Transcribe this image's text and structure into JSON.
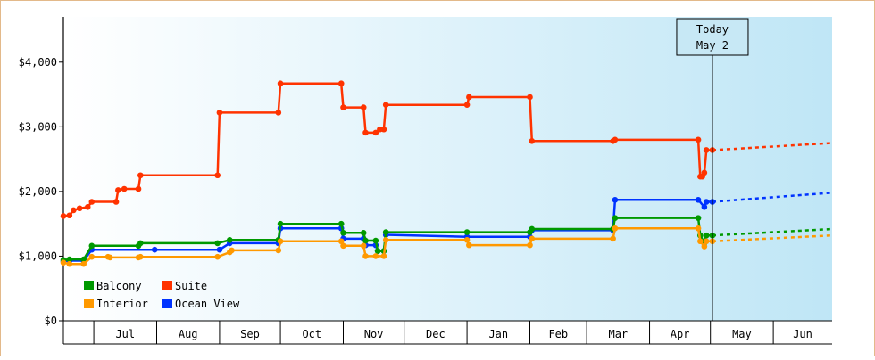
{
  "chart_data": {
    "type": "line",
    "title": "",
    "xlabel": "",
    "ylabel": "",
    "x_range": [
      "2014-06-16",
      "2015-06-30"
    ],
    "ylim": [
      0,
      4700
    ],
    "yticks": [
      0,
      1000,
      2000,
      3000,
      4000
    ],
    "ytick_labels": [
      "$0",
      "$1,000",
      "$2,000",
      "$3,000",
      "$4,000"
    ],
    "month_ticks": [
      {
        "label": "Jul",
        "start": "2014-07-01",
        "end": "2014-08-01"
      },
      {
        "label": "Aug",
        "start": "2014-08-01",
        "end": "2014-09-01"
      },
      {
        "label": "Sep",
        "start": "2014-09-01",
        "end": "2014-10-01"
      },
      {
        "label": "Oct",
        "start": "2014-10-01",
        "end": "2014-11-01"
      },
      {
        "label": "Nov",
        "start": "2014-11-01",
        "end": "2014-12-01"
      },
      {
        "label": "Dec",
        "start": "2014-12-01",
        "end": "2015-01-01"
      },
      {
        "label": "Jan",
        "start": "2015-01-01",
        "end": "2015-02-01"
      },
      {
        "label": "Feb",
        "start": "2015-02-01",
        "end": "2015-03-01"
      },
      {
        "label": "Mar",
        "start": "2015-03-01",
        "end": "2015-04-01"
      },
      {
        "label": "Apr",
        "start": "2015-04-01",
        "end": "2015-05-01"
      },
      {
        "label": "May",
        "start": "2015-05-01",
        "end": "2015-06-01"
      },
      {
        "label": "Jun",
        "start": "2015-06-01",
        "end": "2015-06-30"
      }
    ],
    "today_marker": {
      "date": "2015-05-02",
      "line1": "Today",
      "line2": "May 2"
    },
    "forecast_end": "2015-06-30",
    "grid": false,
    "legend_position": "bottom-left",
    "series": [
      {
        "name": "Suite",
        "color": "#ff3300",
        "points": [
          [
            "2014-06-16",
            1620
          ],
          [
            "2014-06-19",
            1630
          ],
          [
            "2014-06-21",
            1710
          ],
          [
            "2014-06-24",
            1740
          ],
          [
            "2014-06-28",
            1760
          ],
          [
            "2014-06-30",
            1840
          ],
          [
            "2014-07-12",
            1840
          ],
          [
            "2014-07-13",
            2020
          ],
          [
            "2014-07-16",
            2040
          ],
          [
            "2014-07-23",
            2040
          ],
          [
            "2014-07-24",
            2250
          ],
          [
            "2014-08-31",
            2250
          ],
          [
            "2014-09-01",
            3220
          ],
          [
            "2014-09-30",
            3220
          ],
          [
            "2014-10-01",
            3670
          ],
          [
            "2014-10-31",
            3670
          ],
          [
            "2014-11-01",
            3300
          ],
          [
            "2014-11-11",
            3300
          ],
          [
            "2014-11-12",
            2910
          ],
          [
            "2014-11-17",
            2910
          ],
          [
            "2014-11-19",
            2960
          ],
          [
            "2014-11-21",
            2960
          ],
          [
            "2014-11-22",
            3340
          ],
          [
            "2015-01-01",
            3340
          ],
          [
            "2015-01-02",
            3460
          ],
          [
            "2015-02-01",
            3460
          ],
          [
            "2015-02-02",
            2780
          ],
          [
            "2015-03-14",
            2780
          ],
          [
            "2015-03-15",
            2800
          ],
          [
            "2015-04-25",
            2800
          ],
          [
            "2015-04-26",
            2230
          ],
          [
            "2015-04-27",
            2230
          ],
          [
            "2015-04-28",
            2290
          ],
          [
            "2015-04-29",
            2640
          ],
          [
            "2015-05-02",
            2640
          ]
        ],
        "forecast": [
          [
            "2015-05-02",
            2640
          ],
          [
            "2015-06-30",
            2750
          ]
        ]
      },
      {
        "name": "Ocean View",
        "color": "#0033ff",
        "points": [
          [
            "2014-06-16",
            920
          ],
          [
            "2014-06-19",
            930
          ],
          [
            "2014-06-26",
            930
          ],
          [
            "2014-06-30",
            1100
          ],
          [
            "2014-07-31",
            1100
          ],
          [
            "2014-09-01",
            1100
          ],
          [
            "2014-09-06",
            1200
          ],
          [
            "2014-09-30",
            1200
          ],
          [
            "2014-10-01",
            1430
          ],
          [
            "2014-10-31",
            1430
          ],
          [
            "2014-11-01",
            1270
          ],
          [
            "2014-11-11",
            1270
          ],
          [
            "2014-11-12",
            1170
          ],
          [
            "2014-11-17",
            1170
          ],
          [
            "2014-11-18",
            1080
          ],
          [
            "2014-11-21",
            1080
          ],
          [
            "2014-11-22",
            1330
          ],
          [
            "2015-01-01",
            1300
          ],
          [
            "2015-02-01",
            1300
          ],
          [
            "2015-02-02",
            1400
          ],
          [
            "2015-03-14",
            1400
          ],
          [
            "2015-03-15",
            1870
          ],
          [
            "2015-04-25",
            1870
          ],
          [
            "2015-04-28",
            1760
          ],
          [
            "2015-04-29",
            1840
          ],
          [
            "2015-05-02",
            1840
          ]
        ],
        "forecast": [
          [
            "2015-05-02",
            1840
          ],
          [
            "2015-06-30",
            1980
          ]
        ]
      },
      {
        "name": "Balcony",
        "color": "#009900",
        "points": [
          [
            "2014-06-16",
            940
          ],
          [
            "2014-06-19",
            950
          ],
          [
            "2014-06-26",
            950
          ],
          [
            "2014-06-30",
            1160
          ],
          [
            "2014-07-23",
            1160
          ],
          [
            "2014-07-24",
            1200
          ],
          [
            "2014-08-31",
            1200
          ],
          [
            "2014-09-06",
            1250
          ],
          [
            "2014-09-30",
            1250
          ],
          [
            "2014-10-01",
            1500
          ],
          [
            "2014-10-31",
            1500
          ],
          [
            "2014-11-01",
            1360
          ],
          [
            "2014-11-11",
            1360
          ],
          [
            "2014-11-12",
            1240
          ],
          [
            "2014-11-17",
            1240
          ],
          [
            "2014-11-18",
            1080
          ],
          [
            "2014-11-21",
            1080
          ],
          [
            "2014-11-22",
            1370
          ],
          [
            "2015-01-01",
            1370
          ],
          [
            "2015-02-01",
            1370
          ],
          [
            "2015-02-02",
            1420
          ],
          [
            "2015-03-14",
            1420
          ],
          [
            "2015-03-15",
            1590
          ],
          [
            "2015-04-25",
            1590
          ],
          [
            "2015-04-26",
            1320
          ],
          [
            "2015-04-28",
            1200
          ],
          [
            "2015-04-29",
            1320
          ],
          [
            "2015-05-02",
            1320
          ]
        ],
        "forecast": [
          [
            "2015-05-02",
            1320
          ],
          [
            "2015-06-30",
            1420
          ]
        ]
      },
      {
        "name": "Interior",
        "color": "#ff9900",
        "points": [
          [
            "2014-06-16",
            900
          ],
          [
            "2014-06-19",
            880
          ],
          [
            "2014-06-26",
            880
          ],
          [
            "2014-06-30",
            990
          ],
          [
            "2014-07-08",
            990
          ],
          [
            "2014-07-09",
            980
          ],
          [
            "2014-07-23",
            980
          ],
          [
            "2014-07-24",
            990
          ],
          [
            "2014-08-31",
            990
          ],
          [
            "2014-09-06",
            1060
          ],
          [
            "2014-09-07",
            1090
          ],
          [
            "2014-09-30",
            1090
          ],
          [
            "2014-10-01",
            1230
          ],
          [
            "2014-10-31",
            1230
          ],
          [
            "2014-11-01",
            1160
          ],
          [
            "2014-11-11",
            1160
          ],
          [
            "2014-11-12",
            1000
          ],
          [
            "2014-11-17",
            1000
          ],
          [
            "2014-11-21",
            1000
          ],
          [
            "2014-11-22",
            1250
          ],
          [
            "2015-01-01",
            1250
          ],
          [
            "2015-01-02",
            1170
          ],
          [
            "2015-02-01",
            1170
          ],
          [
            "2015-02-02",
            1270
          ],
          [
            "2015-03-14",
            1270
          ],
          [
            "2015-03-15",
            1430
          ],
          [
            "2015-04-25",
            1430
          ],
          [
            "2015-04-26",
            1230
          ],
          [
            "2015-04-28",
            1150
          ],
          [
            "2015-04-29",
            1230
          ],
          [
            "2015-05-02",
            1230
          ]
        ],
        "forecast": [
          [
            "2015-05-02",
            1230
          ],
          [
            "2015-06-30",
            1320
          ]
        ]
      }
    ],
    "legend_rows": [
      [
        "Balcony",
        "Suite"
      ],
      [
        "Interior",
        "Ocean View"
      ]
    ]
  }
}
